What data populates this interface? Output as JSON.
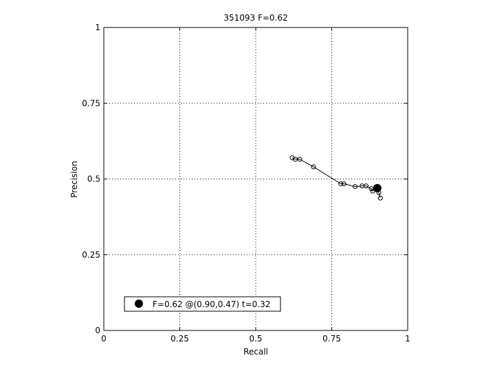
{
  "chart_data": {
    "type": "line",
    "title": "351093 F=0.62",
    "xlabel": "Recall",
    "ylabel": "Precision",
    "xlim": [
      0,
      1
    ],
    "ylim": [
      0,
      1
    ],
    "grid": true,
    "xticks": [
      0,
      0.25,
      0.5,
      0.75,
      1
    ],
    "xtick_labels": [
      "0",
      "0.25",
      "0.5",
      "0.75",
      "1"
    ],
    "yticks": [
      0,
      0.25,
      0.5,
      0.75,
      1
    ],
    "ytick_labels": [
      "0",
      "0.25",
      "0.5",
      "0.75",
      "1"
    ],
    "series": [
      {
        "marker": "open-circle",
        "color": "#000000",
        "points": [
          {
            "x": 0.62,
            "y": 0.57
          },
          {
            "x": 0.63,
            "y": 0.565
          },
          {
            "x": 0.645,
            "y": 0.565
          },
          {
            "x": 0.69,
            "y": 0.54
          },
          {
            "x": 0.78,
            "y": 0.484
          },
          {
            "x": 0.79,
            "y": 0.484
          },
          {
            "x": 0.827,
            "y": 0.475
          },
          {
            "x": 0.85,
            "y": 0.477
          },
          {
            "x": 0.863,
            "y": 0.477
          },
          {
            "x": 0.88,
            "y": 0.468
          },
          {
            "x": 0.885,
            "y": 0.46
          },
          {
            "x": 0.895,
            "y": 0.47
          },
          {
            "x": 0.9,
            "y": 0.465
          },
          {
            "x": 0.905,
            "y": 0.455
          },
          {
            "x": 0.91,
            "y": 0.437
          }
        ]
      }
    ],
    "best_point": {
      "x": 0.9,
      "y": 0.47,
      "marker": "filled-circle"
    },
    "legend": {
      "placement": "bottom-left",
      "entries": [
        {
          "label": "F=0.62 @(0.90,0.47) t=0.32",
          "marker": "filled-circle"
        }
      ]
    }
  }
}
